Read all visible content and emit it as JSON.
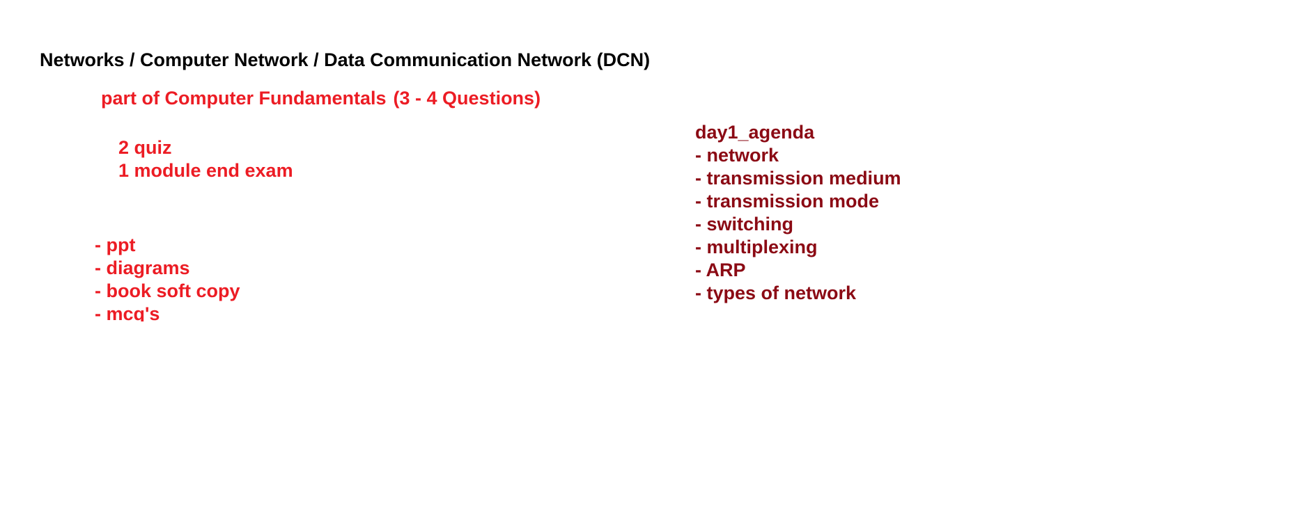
{
  "colors": {
    "title": "#000000",
    "accent_red": "#ec1c24",
    "agenda_dark_red": "#8b0a14",
    "background": "#ffffff"
  },
  "heading": {
    "title": "Networks / Computer Network / Data Communication Network (DCN)",
    "subtitle_part1": "part of Computer Fundamentals",
    "subtitle_part2": "(3 - 4 Questions)"
  },
  "assessment": [
    "2 quiz",
    "1 module end exam"
  ],
  "resources": [
    "- ppt",
    "- diagrams",
    "- book soft copy",
    "- mcq's"
  ],
  "agenda": {
    "heading": "day1_agenda",
    "items": [
      "- network",
      "- transmission medium",
      "- transmission mode",
      "- switching",
      "- multiplexing",
      "- ARP",
      "- types of network"
    ]
  }
}
